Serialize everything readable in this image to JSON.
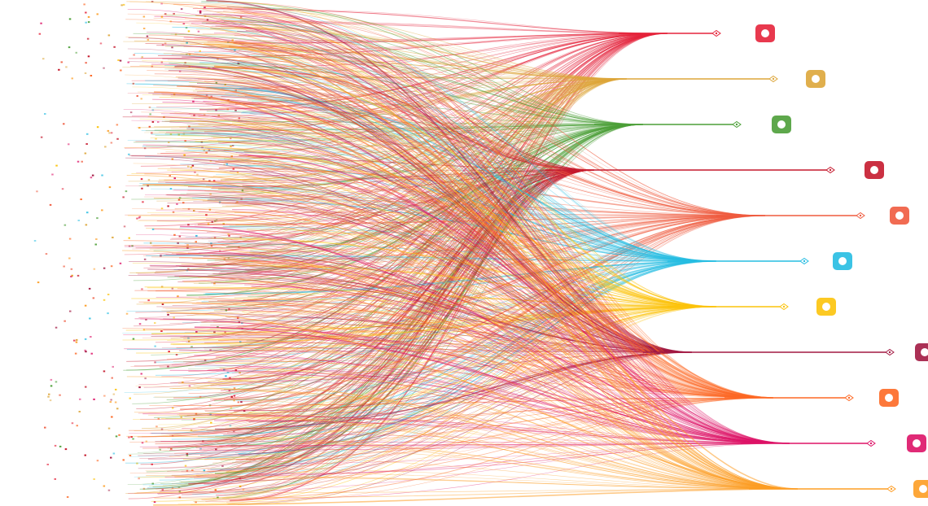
{
  "goals": [
    {
      "color": "#e5243b"
    },
    {
      "color": "#dda63a"
    },
    {
      "color": "#4c9f38"
    },
    {
      "color": "#c5192d"
    },
    {
      "color": "#ef5b3f"
    },
    {
      "color": "#26bde2"
    },
    {
      "color": "#fcc30b"
    },
    {
      "color": "#a21942"
    },
    {
      "color": "#fd6925"
    },
    {
      "color": "#dd1367"
    },
    {
      "color": "#fd9d24"
    }
  ]
}
